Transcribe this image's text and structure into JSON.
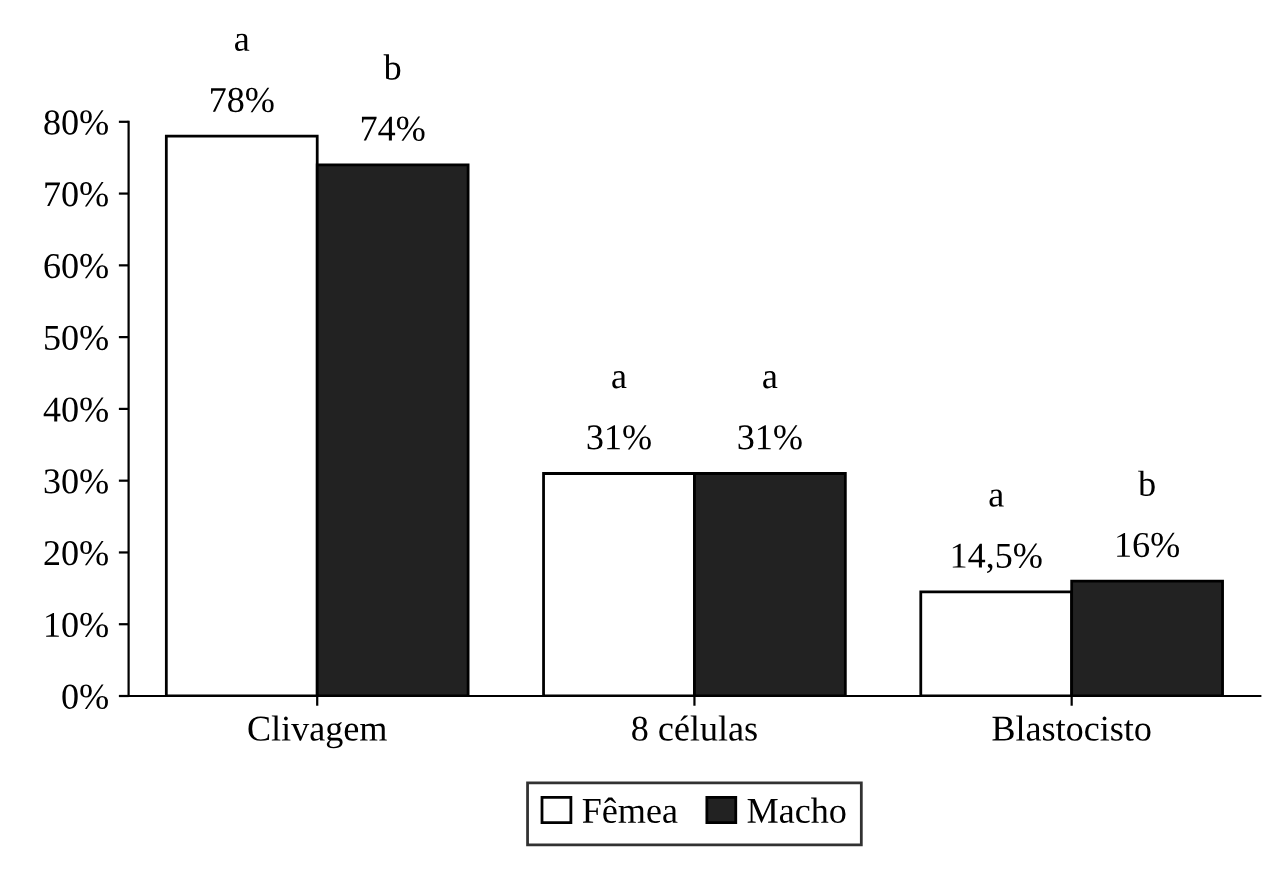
{
  "chart_data": {
    "type": "bar",
    "categories": [
      "Clivagem",
      "8 células",
      "Blastocisto"
    ],
    "series": [
      {
        "name": "Fêmea",
        "color": "#ffffff",
        "values": [
          78,
          31,
          14.5
        ],
        "value_labels": [
          "78%",
          "31%",
          "14,5%"
        ]
      },
      {
        "name": "Macho",
        "color": "#222222",
        "values": [
          74,
          31,
          16
        ],
        "value_labels": [
          "74%",
          "31%",
          "16%"
        ]
      }
    ],
    "ylim": [
      0,
      80
    ],
    "yticks": [
      {
        "value": 0,
        "label": "0%"
      },
      {
        "value": 10,
        "label": "10%"
      },
      {
        "value": 20,
        "label": "20%"
      },
      {
        "value": 30,
        "label": "30%"
      },
      {
        "value": 40,
        "label": "40%"
      },
      {
        "value": 50,
        "label": "50%"
      },
      {
        "value": 60,
        "label": "60%"
      },
      {
        "value": 70,
        "label": "70%"
      },
      {
        "value": 80,
        "label": "80%"
      }
    ],
    "annotations": [
      "a",
      "b",
      "a",
      "a",
      "a",
      "b"
    ],
    "grid": false,
    "legend": "bottom"
  }
}
